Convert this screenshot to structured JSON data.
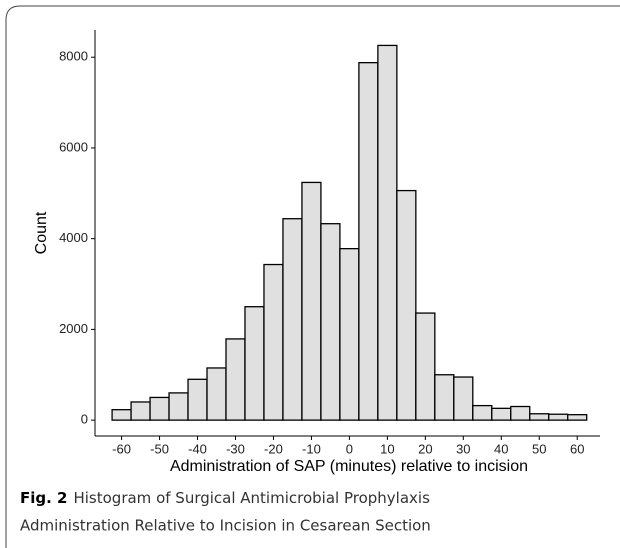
{
  "chart_data": {
    "type": "histogram",
    "x_label": "Administration of SAP (minutes) relative to incision",
    "y_label": "Count",
    "bins": [
      -62.5,
      -57.5,
      -52.5,
      -47.5,
      -42.5,
      -37.5,
      -32.5,
      -27.5,
      -22.5,
      -17.5,
      -12.5,
      -7.5,
      -2.5,
      2.5,
      7.5,
      12.5,
      17.5,
      22.5,
      27.5,
      32.5,
      37.5,
      42.5,
      47.5,
      52.5,
      57.5,
      62.5
    ],
    "values": [
      230,
      400,
      500,
      600,
      900,
      1150,
      1790,
      2500,
      3430,
      4440,
      5240,
      4330,
      3780,
      7880,
      8260,
      5060,
      2360,
      1000,
      950,
      320,
      260,
      300,
      140,
      130,
      120
    ],
    "color": "#e0e0e0",
    "xlim": [
      -67,
      66
    ],
    "xticks": [
      -60,
      -50,
      -40,
      -30,
      -20,
      -10,
      0,
      10,
      20,
      30,
      40,
      50,
      60
    ],
    "ylim": [
      -350,
      8600
    ],
    "yticks": [
      0,
      2000,
      4000,
      6000,
      8000
    ]
  },
  "caption": {
    "label": "Fig. 2",
    "lines": [
      "Histogram of Surgical Antimicrobial Prophylaxis",
      "Administration Relative to Incision in Cesarean Section"
    ]
  }
}
